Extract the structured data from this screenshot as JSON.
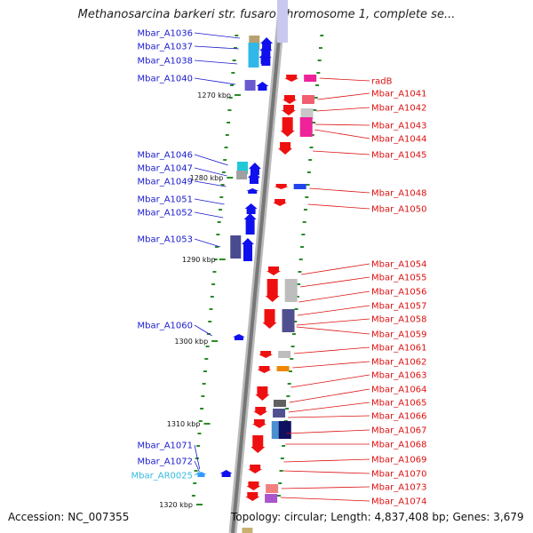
{
  "title": "Methanosarcina barkeri str. fusaro chromosome 1, complete se...",
  "accession": "Accession: NC_007355",
  "topology": "Topology: circular; Length: 4,837,408 bp; Genes: 3,679",
  "colors": {
    "forward_label": "#1a1acc",
    "reverse_label": "#dd1111",
    "rna_label": "#33bbe0",
    "backbone": "#888888"
  },
  "kbp_ticks": [
    "1270 kbp",
    "1280 kbp",
    "1290 kbp",
    "1300 kbp",
    "1310 kbp",
    "1320 kbp"
  ],
  "left_genes": [
    "Mbar_A1036",
    "Mbar_A1037",
    "Mbar_A1038",
    "Mbar_A1040",
    "Mbar_A1046",
    "Mbar_A1047",
    "Mbar_A1049",
    "Mbar_A1051",
    "Mbar_A1052",
    "Mbar_A1053",
    "Mbar_A1060",
    "Mbar_A1071",
    "Mbar_A1072",
    "Mbar_AR0025"
  ],
  "right_genes": [
    "radB",
    "Mbar_A1041",
    "Mbar_A1042",
    "Mbar_A1043",
    "Mbar_A1044",
    "Mbar_A1045",
    "Mbar_A1048",
    "Mbar_A1050",
    "Mbar_A1054",
    "Mbar_A1055",
    "Mbar_A1056",
    "Mbar_A1057",
    "Mbar_A1058",
    "Mbar_A1059",
    "Mbar_A1061",
    "Mbar_A1062",
    "Mbar_A1063",
    "Mbar_A1064",
    "Mbar_A1065",
    "Mbar_A1066",
    "Mbar_A1067",
    "Mbar_A1068",
    "Mbar_A1069",
    "Mbar_A1070",
    "Mbar_A1073",
    "Mbar_A1074"
  ]
}
